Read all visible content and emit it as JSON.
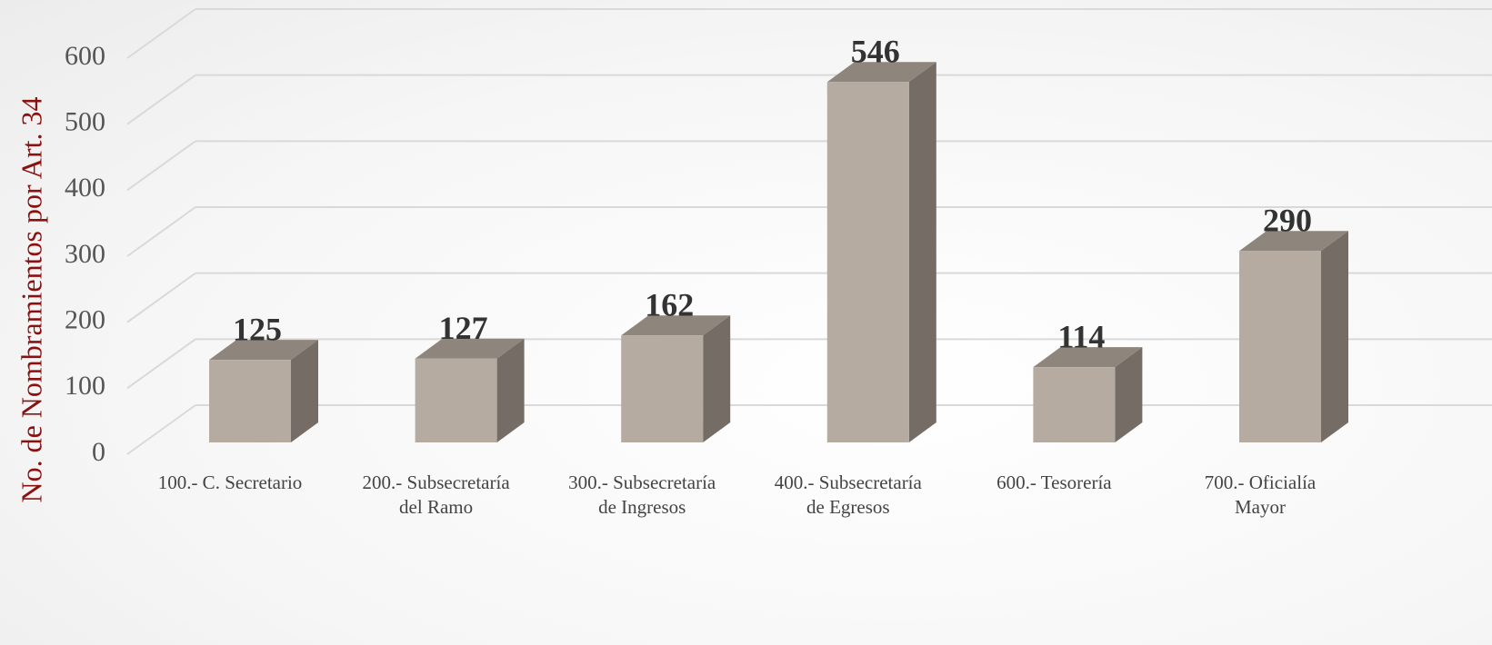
{
  "chart_data": {
    "type": "bar3d",
    "y_axis_label": "No. de Nombramientos por Art. 34",
    "categories": [
      "100.- C. Secretario",
      "200.- Subsecretaría\ndel Ramo",
      "300.- Subsecretaría\nde Ingresos",
      "400.- Subsecretaría\nde Egresos",
      "600.- Tesorería",
      "700.- Oficialía\nMayor"
    ],
    "values": [
      125,
      127,
      162,
      546,
      114,
      290
    ],
    "color": "#b5aba1",
    "ylim": [
      0,
      600
    ],
    "yticks": [
      0,
      100,
      200,
      300,
      400,
      500,
      600
    ],
    "grid": true
  }
}
